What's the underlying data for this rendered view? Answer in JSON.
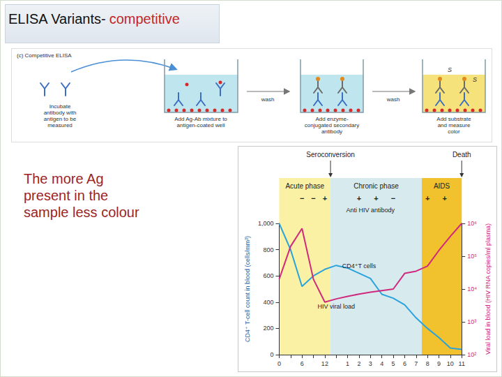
{
  "header": {
    "text": "ELISA Variants-",
    "highlight": "competitive"
  },
  "diagram": {
    "caption": "(c) Competitive ELISA",
    "steps": [
      {
        "label": [
          "Incubate",
          "antibody with",
          "antigen to be",
          "measured"
        ]
      },
      {
        "label": [
          "Add Ag-Ab mixture to",
          "antigen-coated well"
        ]
      },
      {
        "label": [
          "Add enzyme-",
          "conjugated secondary",
          "antibody"
        ]
      },
      {
        "label": [
          "Add substrate",
          "and measure",
          "color"
        ],
        "mark": "S"
      }
    ],
    "arrows": [
      "wash",
      "wash"
    ]
  },
  "note": [
    "The more Ag",
    "present in the",
    "sample less colour"
  ],
  "chart_data": {
    "type": "line",
    "categories": [
      "0",
      null,
      "6",
      null,
      "12",
      null,
      "1",
      "2",
      "3",
      "4",
      "5",
      "6",
      "7",
      "8",
      "9",
      "10",
      "11"
    ],
    "series": [
      {
        "name": "CD4⁺T cells",
        "color": "#2aa3dc",
        "values": [
          1000,
          800,
          520,
          600,
          650,
          680,
          660,
          620,
          580,
          460,
          430,
          380,
          280,
          200,
          130,
          50,
          40
        ],
        "label_at": 7
      },
      {
        "name": "HIV viral load",
        "color": "#d0287d",
        "axis": "y2",
        "values": [
          20000,
          200000,
          700000,
          20000,
          4000,
          5000,
          6000,
          7000,
          8000,
          9000,
          10000,
          30000,
          35000,
          50000,
          150000,
          400000,
          1000000
        ],
        "label_at": 5
      }
    ],
    "ylabel": "CD4⁺ T-cell count in blood (cells/mm³)",
    "y2label": "Viral load in blood (HIV RNA copies/ml plasma)",
    "ylim": [
      0,
      1000
    ],
    "yticks": [
      0,
      200,
      400,
      600,
      800,
      {
        "value": 1000,
        "label": "1,000"
      }
    ],
    "y2lim": [
      100,
      1000000
    ],
    "y2ticks": [
      {
        "value": 100,
        "label": "10²"
      },
      {
        "value": 1000,
        "label": "10³"
      },
      {
        "value": 10000,
        "label": "10⁴"
      },
      {
        "value": 100000,
        "label": "10⁵"
      },
      {
        "value": 1000000,
        "label": "10⁶"
      }
    ],
    "log": "y2",
    "grid": false,
    "phases": [
      {
        "label": "Acute phase",
        "from": 0,
        "to": 4.5,
        "color": "#fbf1a5"
      },
      {
        "label": "Chronic phase",
        "from": 4.5,
        "to": 12.5,
        "color": "#d7ebef"
      },
      {
        "label": "AIDS",
        "from": 12.5,
        "to": 16,
        "color": "#f2c12e"
      }
    ],
    "events": [
      {
        "label": "Seroconversion",
        "at": 4.5
      },
      {
        "label": "Death",
        "at": 16
      }
    ],
    "antibody": {
      "label": "Anti HIV antibody",
      "at": 8,
      "signs": [
        {
          "sign": "−",
          "at": 2
        },
        {
          "sign": "−",
          "at": 3
        },
        {
          "sign": "+",
          "at": 4
        },
        {
          "sign": "+",
          "at": 7
        },
        {
          "sign": "+",
          "at": 8.5
        },
        {
          "sign": "−",
          "at": 10
        },
        {
          "sign": "+",
          "at": 13
        },
        {
          "sign": "+",
          "at": 14.5
        }
      ]
    }
  }
}
